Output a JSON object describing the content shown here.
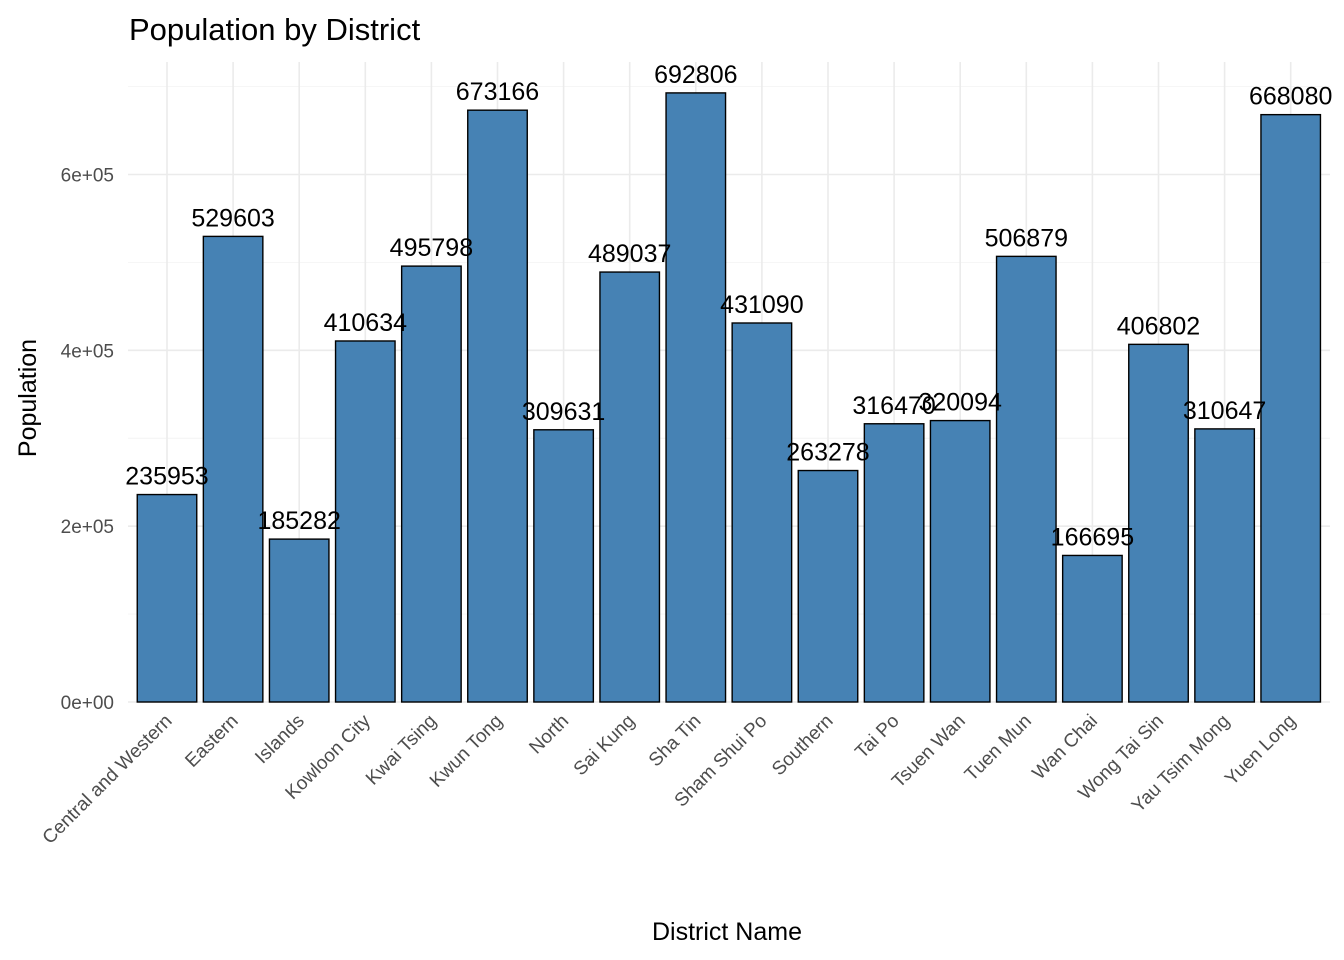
{
  "chart_data": {
    "type": "bar",
    "title": "Population by District",
    "xlabel": "District Name",
    "ylabel": "Population",
    "categories": [
      "Central and Western",
      "Eastern",
      "Islands",
      "Kowloon City",
      "Kwai Tsing",
      "Kwun Tong",
      "North",
      "Sai Kung",
      "Sha Tin",
      "Sham Shui Po",
      "Southern",
      "Tai Po",
      "Tsuen Wan",
      "Tuen Mun",
      "Wan Chai",
      "Wong Tai Sin",
      "Yau Tsim Mong",
      "Yuen Long"
    ],
    "values": [
      235953,
      529603,
      185282,
      410634,
      495798,
      673166,
      309631,
      489037,
      692806,
      431090,
      263278,
      316470,
      320094,
      506879,
      166695,
      406802,
      310647,
      668080
    ],
    "data_labels": [
      "235953",
      "529603",
      "185282",
      "410634",
      "495798",
      "673166",
      "309631",
      "489037",
      "692806",
      "431090",
      "263278",
      "316470",
      "320094",
      "506879",
      "166695",
      "406802",
      "310647",
      "668080"
    ],
    "yticks": [
      0,
      200000,
      400000,
      600000
    ],
    "ytick_labels": [
      "0e+00",
      "2e+05",
      "4e+05",
      "6e+05"
    ],
    "ylim": [
      0,
      700000
    ],
    "bar_color": "#4682b4",
    "bar_outline": "#000000",
    "grid": true,
    "legend": "none"
  }
}
